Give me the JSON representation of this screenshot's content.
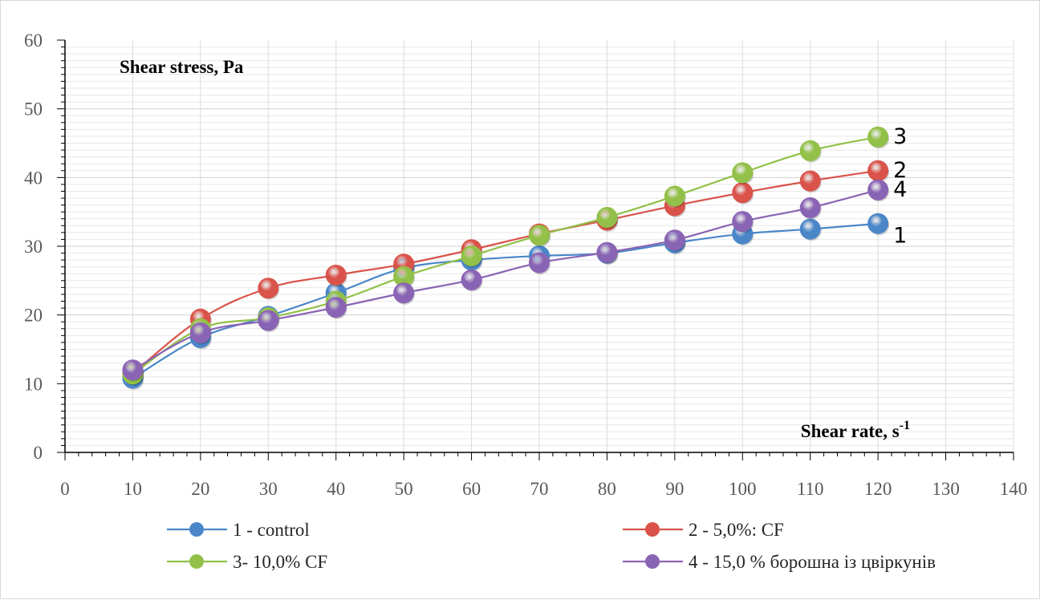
{
  "chart_data": {
    "type": "line",
    "title": "",
    "ylabel": "Shear stress, Pa",
    "xlabel_text": "Shear rate, s",
    "xlabel_sup": "-1",
    "xlim": [
      0,
      140
    ],
    "ylim": [
      0,
      60
    ],
    "x_ticks": [
      0,
      10,
      20,
      30,
      40,
      50,
      60,
      70,
      80,
      90,
      100,
      110,
      120,
      130,
      140
    ],
    "y_ticks": [
      0,
      10,
      20,
      30,
      40,
      50,
      60
    ],
    "grid": "horizontal minor gridlines",
    "legend_position": "bottom",
    "x": [
      10,
      20,
      30,
      40,
      50,
      60,
      70,
      80,
      90,
      100,
      110,
      120
    ],
    "series": [
      {
        "name": "1 - control",
        "end_label": "1",
        "color": "#4a86c8",
        "values": [
          10.8,
          16.7,
          19.8,
          23.2,
          26.8,
          28.0,
          28.6,
          29.0,
          30.5,
          31.8,
          32.5,
          33.3
        ]
      },
      {
        "name": "2 - 5,0%: CF",
        "end_label": "2",
        "color": "#d9534a",
        "values": [
          11.5,
          19.4,
          23.9,
          25.8,
          27.4,
          29.5,
          31.8,
          33.8,
          35.9,
          37.8,
          39.5,
          41.0
        ]
      },
      {
        "name": "3- 10,0% CF",
        "end_label": "3",
        "color": "#92c048",
        "values": [
          11.4,
          18.0,
          19.6,
          22.0,
          25.6,
          28.6,
          31.6,
          34.2,
          37.3,
          40.7,
          43.9,
          45.9
        ]
      },
      {
        "name": "4 - 15,0 % борошна із цвіркунів",
        "end_label": "4",
        "color": "#8a64b4",
        "values": [
          12.0,
          17.4,
          19.2,
          21.1,
          23.2,
          25.1,
          27.6,
          29.1,
          30.9,
          33.6,
          35.6,
          38.2
        ]
      }
    ]
  }
}
